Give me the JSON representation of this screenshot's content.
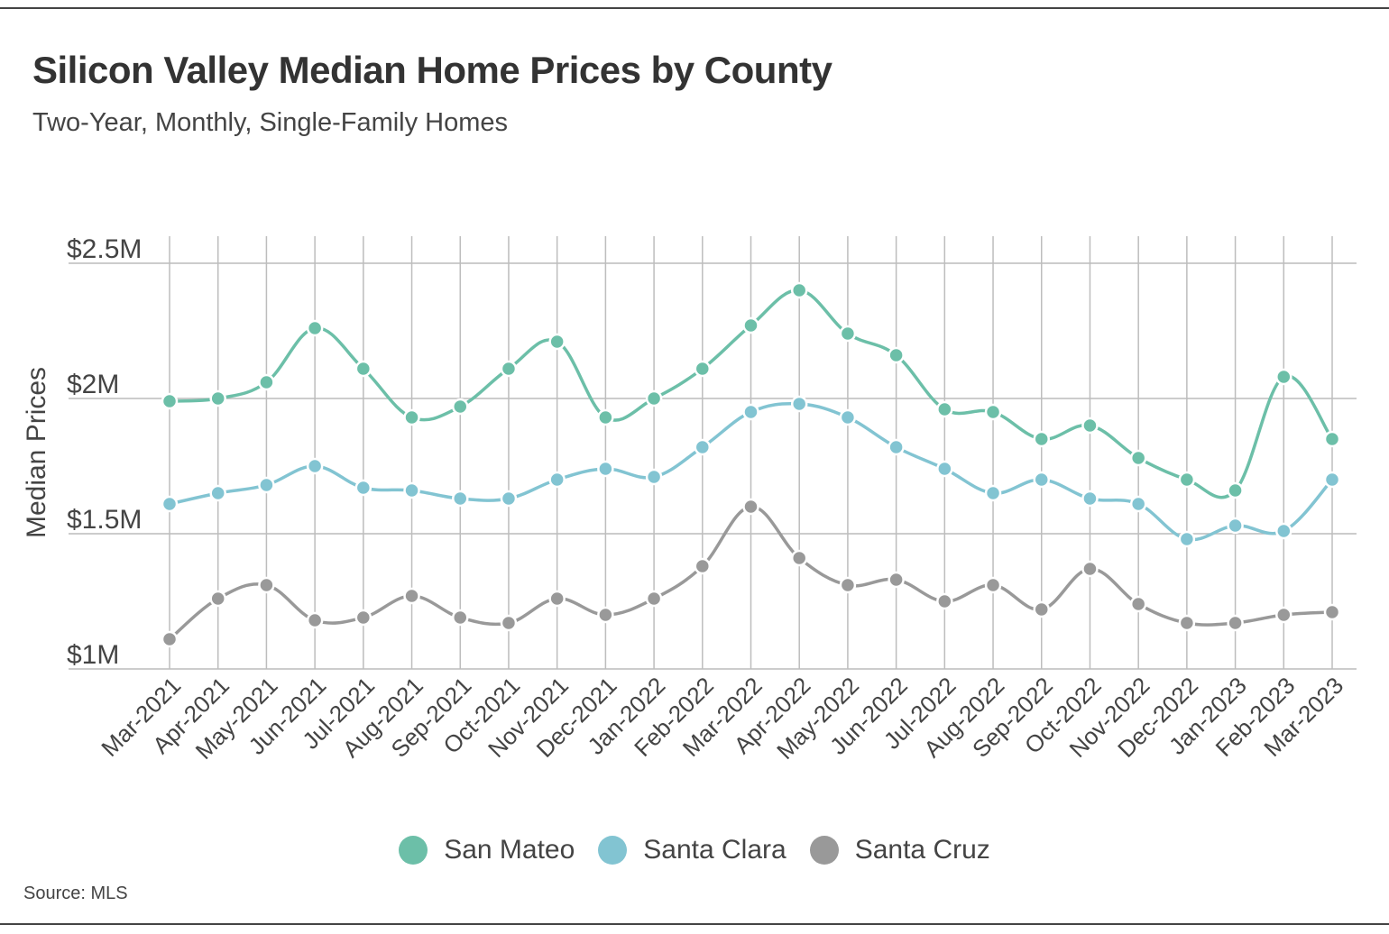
{
  "title": "Silicon Valley Median Home Prices by County",
  "subtitle": "Two-Year, Monthly, Single-Family Homes",
  "source": "Source: MLS",
  "chart_data": {
    "type": "line",
    "title": "Silicon Valley Median Home Prices by County",
    "subtitle": "Two-Year, Monthly, Single-Family Homes",
    "xlabel": "",
    "ylabel": "Median Prices",
    "ylim": [
      1.0,
      2.5
    ],
    "yticks": [
      1.0,
      1.5,
      2.0,
      2.5
    ],
    "ytick_labels": [
      "$1M",
      "$1.5M",
      "$2M",
      "$2.5M"
    ],
    "grid": true,
    "legend_position": "bottom-center",
    "categories": [
      "Mar-2021",
      "Apr-2021",
      "May-2021",
      "Jun-2021",
      "Jul-2021",
      "Aug-2021",
      "Sep-2021",
      "Oct-2021",
      "Nov-2021",
      "Dec-2021",
      "Jan-2022",
      "Feb-2022",
      "Mar-2022",
      "Apr-2022",
      "May-2022",
      "Jun-2022",
      "Jul-2022",
      "Aug-2022",
      "Sep-2022",
      "Oct-2022",
      "Nov-2022",
      "Dec-2022",
      "Jan-2023",
      "Feb-2023",
      "Mar-2023"
    ],
    "series": [
      {
        "name": "San Mateo",
        "color": "#6cbfa8",
        "values": [
          1.99,
          2.0,
          2.06,
          2.26,
          2.11,
          1.93,
          1.97,
          2.11,
          2.21,
          1.93,
          2.0,
          2.11,
          2.27,
          2.4,
          2.24,
          2.16,
          1.96,
          1.95,
          1.85,
          1.9,
          1.78,
          1.7,
          1.66,
          2.08,
          1.85
        ]
      },
      {
        "name": "Santa Clara",
        "color": "#82c4d2",
        "values": [
          1.61,
          1.65,
          1.68,
          1.75,
          1.67,
          1.66,
          1.63,
          1.63,
          1.7,
          1.74,
          1.71,
          1.82,
          1.95,
          1.98,
          1.93,
          1.82,
          1.74,
          1.65,
          1.7,
          1.63,
          1.61,
          1.48,
          1.53,
          1.51,
          1.7
        ]
      },
      {
        "name": "Santa Cruz",
        "color": "#999999",
        "values": [
          1.11,
          1.26,
          1.31,
          1.18,
          1.19,
          1.27,
          1.19,
          1.17,
          1.26,
          1.2,
          1.26,
          1.38,
          1.6,
          1.41,
          1.31,
          1.33,
          1.25,
          1.31,
          1.22,
          1.37,
          1.24,
          1.17,
          1.17,
          1.2,
          1.21
        ]
      }
    ]
  }
}
